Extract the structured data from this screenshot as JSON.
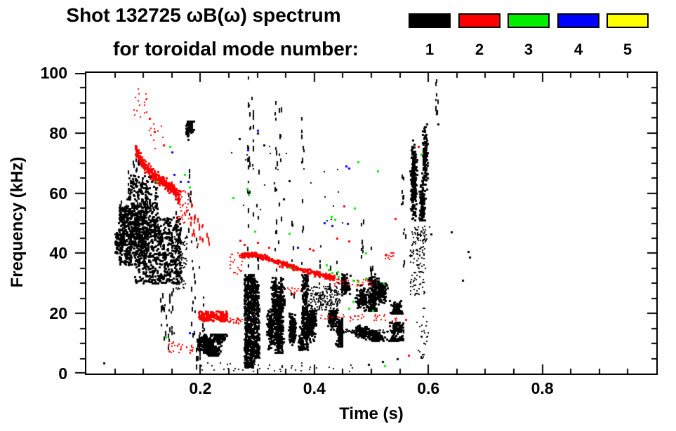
{
  "title": {
    "line1": "Shot 132725 ωB(ω) spectrum",
    "line2": "for toroidal mode number:"
  },
  "legend": {
    "entries": [
      {
        "label": "1",
        "color": "#000000"
      },
      {
        "label": "2",
        "color": "#ff0000"
      },
      {
        "label": "3",
        "color": "#00ee00"
      },
      {
        "label": "4",
        "color": "#0000ff"
      },
      {
        "label": "5",
        "color": "#ffff00"
      }
    ]
  },
  "chart_data": {
    "type": "scatter",
    "title": "Shot 132725 ωB(ω) spectrum for toroidal mode number: 1 2 3 4 5",
    "xlabel": "Time (s)",
    "ylabel": "Frequency (kHz)",
    "xlim": [
      0,
      1
    ],
    "ylim": [
      0,
      100
    ],
    "xticks_major": [
      0.2,
      0.4,
      0.6,
      0.8
    ],
    "xtick_labels": [
      "0.2",
      "0.4",
      "0.6",
      "0.8"
    ],
    "xtick_minor_step": 0.05,
    "yticks_major": [
      0,
      20,
      40,
      60,
      80,
      100
    ],
    "ytick_labels": [
      "0",
      "20",
      "40",
      "60",
      "80",
      "100"
    ],
    "ytick_minor_step": 5,
    "grid": false,
    "legend_position": "top-right",
    "series": [
      {
        "name": "n=1",
        "mode": 1,
        "color": "#000000",
        "clusters": [
          [
            0.05,
            0.064,
            40,
            48,
            60,
            3,
            0
          ],
          [
            0.057,
            0.105,
            36,
            56,
            500,
            3,
            0
          ],
          [
            0.07,
            0.125,
            45,
            66,
            260,
            3,
            0
          ],
          [
            0.085,
            0.165,
            30,
            52,
            600,
            3,
            0
          ],
          [
            0.155,
            0.178,
            28,
            46,
            90,
            2,
            0
          ],
          [
            0.175,
            0.188,
            74,
            84,
            90,
            3,
            2
          ],
          [
            0.19,
            0.272,
            6,
            13,
            420,
            3,
            4
          ],
          [
            0.277,
            0.294,
            2,
            33,
            560,
            3,
            0
          ],
          [
            0.293,
            0.303,
            5,
            31,
            220,
            3,
            0
          ],
          [
            0.303,
            0.352,
            7,
            32,
            650,
            3,
            5
          ],
          [
            0.352,
            0.378,
            8,
            24,
            330,
            3,
            3
          ],
          [
            0.378,
            0.388,
            8,
            33,
            230,
            3,
            0
          ],
          [
            0.388,
            0.448,
            9,
            21,
            620,
            3,
            5
          ],
          [
            0.39,
            0.446,
            21,
            29,
            180,
            2,
            0
          ],
          [
            0.448,
            0.512,
            21,
            33,
            430,
            3,
            4
          ],
          [
            0.512,
            0.558,
            20,
            30,
            290,
            3,
            3
          ],
          [
            0.448,
            0.556,
            11,
            17,
            360,
            3,
            5
          ],
          [
            0.568,
            0.598,
            51,
            83,
            540,
            3,
            4
          ],
          [
            0.568,
            0.595,
            26,
            48,
            110,
            2,
            0
          ],
          [
            0.232,
            0.46,
            50,
            85,
            22,
            2,
            0
          ],
          [
            0.2,
            0.47,
            0.5,
            3.5,
            40,
            2,
            0
          ],
          [
            0.575,
            0.603,
            44,
            49,
            36,
            2,
            0
          ],
          [
            0.58,
            0.6,
            5,
            22,
            28,
            2,
            0
          ]
        ],
        "columns": [
          [
            0.062,
            50,
            60,
            8
          ],
          [
            0.068,
            46,
            60,
            7
          ],
          [
            0.075,
            52,
            68,
            9
          ],
          [
            0.082,
            55,
            71,
            9
          ],
          [
            0.09,
            55,
            73,
            11
          ],
          [
            0.098,
            50,
            66,
            7
          ],
          [
            0.105,
            48,
            63,
            7
          ],
          [
            0.112,
            45,
            58,
            6
          ],
          [
            0.12,
            42,
            56,
            6
          ],
          [
            0.128,
            38,
            52,
            6
          ],
          [
            0.133,
            10,
            32,
            8
          ],
          [
            0.139,
            9,
            30,
            8
          ],
          [
            0.145,
            8,
            28,
            7
          ],
          [
            0.151,
            12,
            33,
            7
          ],
          [
            0.158,
            30,
            55,
            8
          ],
          [
            0.165,
            27,
            49,
            7
          ],
          [
            0.182,
            46,
            71,
            8
          ],
          [
            0.186,
            8,
            45,
            9
          ],
          [
            0.192,
            3,
            46,
            11
          ],
          [
            0.198,
            3,
            40,
            9
          ],
          [
            0.205,
            4,
            28,
            7
          ],
          [
            0.285,
            34,
            100,
            20
          ],
          [
            0.291,
            40,
            97,
            12
          ],
          [
            0.302,
            36,
            68,
            7
          ],
          [
            0.332,
            34,
            99,
            15
          ],
          [
            0.34,
            42,
            90,
            9
          ],
          [
            0.362,
            26,
            58,
            6
          ],
          [
            0.38,
            34,
            86,
            11
          ],
          [
            0.41,
            22,
            44,
            7
          ],
          [
            0.426,
            22,
            40,
            5
          ],
          [
            0.441,
            23,
            38,
            5
          ],
          [
            0.484,
            34,
            53,
            8
          ],
          [
            0.5,
            33,
            44,
            5
          ],
          [
            0.555,
            54,
            68,
            8
          ],
          [
            0.559,
            36,
            50,
            5
          ],
          [
            0.616,
            87,
            100,
            9
          ]
        ],
        "tracks": [
          {
            "pts": [
              [
                0.45,
                14
              ],
              [
                0.557,
                14
              ]
            ],
            "hw": 1.0,
            "n": 90,
            "s": 2
          }
        ],
        "dots": [
          [
            0.031,
            3.5
          ],
          [
            0.617,
            83
          ],
          [
            0.67,
            40.5
          ],
          [
            0.673,
            38.8
          ],
          [
            0.66,
            31
          ],
          [
            0.64,
            47
          ],
          [
            0.605,
            46.5
          ],
          [
            0.495,
            3
          ],
          [
            0.52,
            4
          ],
          [
            0.545,
            5
          ],
          [
            0.3,
            80
          ],
          [
            0.312,
            76
          ],
          [
            0.356,
            64
          ],
          [
            0.346,
            58
          ],
          [
            0.268,
            78
          ]
        ]
      },
      {
        "name": "n=2",
        "mode": 2,
        "color": "#ff0000",
        "clusters": [
          [
            0.083,
            0.108,
            84,
            95,
            16,
            2,
            0
          ],
          [
            0.108,
            0.14,
            74,
            86,
            10,
            2,
            0
          ],
          [
            0.158,
            0.18,
            50,
            61,
            46,
            2,
            0
          ],
          [
            0.197,
            0.247,
            17.5,
            20.8,
            150,
            3,
            0
          ],
          [
            0.247,
            0.274,
            16.5,
            18.5,
            26,
            2,
            0
          ],
          [
            0.143,
            0.188,
            6.5,
            10.5,
            30,
            2,
            0
          ],
          [
            0.252,
            0.274,
            33,
            40,
            26,
            2,
            0
          ],
          [
            0.435,
            0.502,
            29,
            31.6,
            34,
            2,
            0
          ],
          [
            0.41,
            0.548,
            17.5,
            19.6,
            44,
            2,
            0
          ],
          [
            0.353,
            0.376,
            26,
            28.5,
            12,
            2,
            0
          ],
          [
            0.524,
            0.54,
            38,
            40.2,
            14,
            2,
            0
          ]
        ],
        "columns": [
          [
            0.185,
            45,
            57,
            7
          ],
          [
            0.19,
            44,
            55,
            7
          ],
          [
            0.197,
            43,
            52,
            5
          ],
          [
            0.205,
            44,
            50,
            4
          ],
          [
            0.214,
            43,
            47,
            3
          ]
        ],
        "tracks": [
          {
            "pts": [
              [
                0.086,
                75
              ],
              [
                0.098,
                70
              ],
              [
                0.112,
                67
              ],
              [
                0.126,
                65
              ],
              [
                0.14,
                63
              ],
              [
                0.152,
                61
              ],
              [
                0.163,
                58.5
              ]
            ],
            "hw": 2.8,
            "n": 290,
            "s": 3
          },
          {
            "pts": [
              [
                0.272,
                39.5
              ],
              [
                0.3,
                39.6
              ],
              [
                0.33,
                37.5
              ],
              [
                0.36,
                35.5
              ],
              [
                0.39,
                34
              ],
              [
                0.42,
                32.6
              ],
              [
                0.436,
                31.8
              ]
            ],
            "hw": 1.3,
            "n": 300,
            "s": 3
          }
        ],
        "dots": [
          [
            0.111,
            84.8
          ],
          [
            0.135,
            75.9
          ],
          [
            0.12,
            80.5
          ],
          [
            0.452,
            55.6
          ],
          [
            0.542,
            51.4
          ],
          [
            0.392,
            41.5
          ],
          [
            0.398,
            41
          ],
          [
            0.583,
            75.5
          ],
          [
            0.589,
            73
          ],
          [
            0.44,
            45
          ],
          [
            0.461,
            44
          ],
          [
            0.27,
            44.2
          ],
          [
            0.277,
            43
          ],
          [
            0.3,
            43.5
          ],
          [
            0.32,
            42
          ],
          [
            0.56,
            18
          ],
          [
            0.565,
            6
          ]
        ]
      },
      {
        "name": "n=3",
        "mode": 3,
        "color": "#00ee00",
        "clusters": [],
        "columns": [],
        "tracks": [],
        "dots": [
          [
            0.146,
            75.5
          ],
          [
            0.123,
            63.8
          ],
          [
            0.172,
            66.1
          ],
          [
            0.181,
            61.9
          ],
          [
            0.257,
            58.4
          ],
          [
            0.282,
            61.5
          ],
          [
            0.284,
            59.5
          ],
          [
            0.296,
            47.4
          ],
          [
            0.356,
            46.7
          ],
          [
            0.357,
            35.3
          ],
          [
            0.477,
            70.3
          ],
          [
            0.511,
            67.3
          ],
          [
            0.47,
            55.1
          ],
          [
            0.43,
            52.2
          ],
          [
            0.436,
            51.3
          ],
          [
            0.421,
            36.2
          ],
          [
            0.425,
            34.6
          ],
          [
            0.431,
            33.6
          ],
          [
            0.441,
            33.9
          ],
          [
            0.49,
            40
          ],
          [
            0.442,
            32.2
          ],
          [
            0.468,
            31
          ],
          [
            0.476,
            30.6
          ],
          [
            0.49,
            31.6
          ],
          [
            0.468,
            24
          ],
          [
            0.461,
            21.6
          ],
          [
            0.502,
            21
          ],
          [
            0.521,
            30
          ],
          [
            0.588,
            73
          ],
          [
            0.139,
            12.1
          ],
          [
            0.524,
            2.5
          ]
        ]
      },
      {
        "name": "n=4",
        "mode": 4,
        "color": "#0000ff",
        "clusters": [],
        "columns": [],
        "tracks": [],
        "dots": [
          [
            0.15,
            73.6
          ],
          [
            0.154,
            66.1
          ],
          [
            0.165,
            63.8
          ],
          [
            0.179,
            63.8
          ],
          [
            0.3,
            80.8
          ],
          [
            0.283,
            74.3
          ],
          [
            0.371,
            42
          ],
          [
            0.456,
            68.9
          ],
          [
            0.461,
            68.2
          ],
          [
            0.417,
            50.2
          ],
          [
            0.431,
            49.3
          ],
          [
            0.458,
            49.8
          ],
          [
            0.181,
            13.6
          ]
        ]
      },
      {
        "name": "n=5",
        "mode": 5,
        "color": "#ffff00",
        "clusters": [],
        "columns": [],
        "tracks": [],
        "dots": []
      }
    ]
  }
}
